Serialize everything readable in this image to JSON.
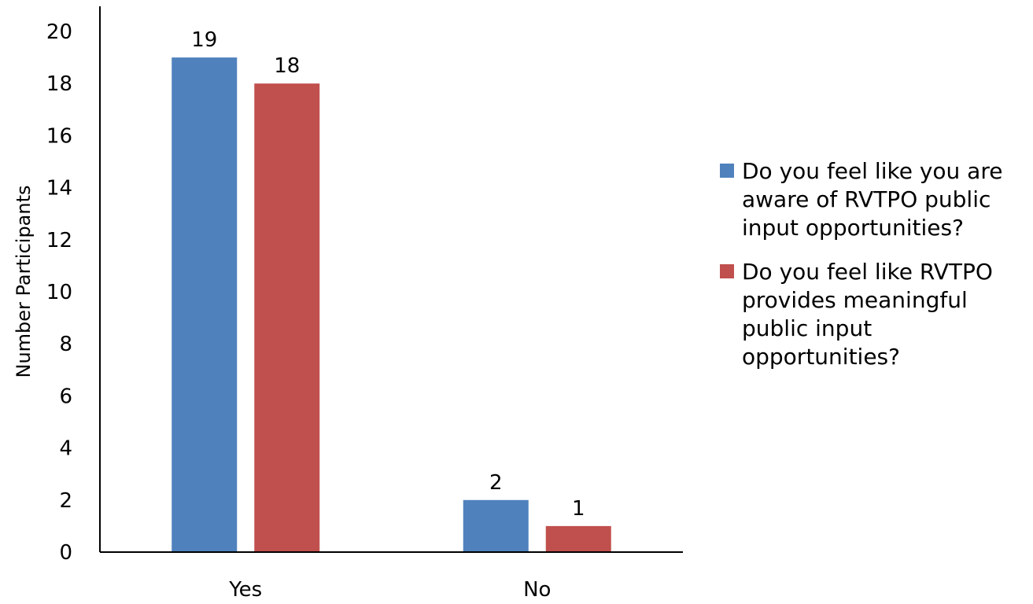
{
  "chart_data": {
    "type": "bar",
    "title": "",
    "xlabel": "",
    "ylabel": "Number Participants",
    "ylim": [
      0,
      20
    ],
    "yticks": [
      0,
      2,
      4,
      6,
      8,
      10,
      12,
      14,
      16,
      18,
      20
    ],
    "categories": [
      "Yes",
      "No"
    ],
    "series": [
      {
        "name": "Do you feel like you are aware of RVTPO public input opportunities?",
        "color": "#4F81BD",
        "values": [
          19,
          2
        ]
      },
      {
        "name": "Do you feel like RVTPO provides meaningful public input opportunities?",
        "color": "#C0504D",
        "values": [
          18,
          1
        ]
      }
    ],
    "legend_position": "right",
    "grid": false,
    "data_labels": true
  }
}
